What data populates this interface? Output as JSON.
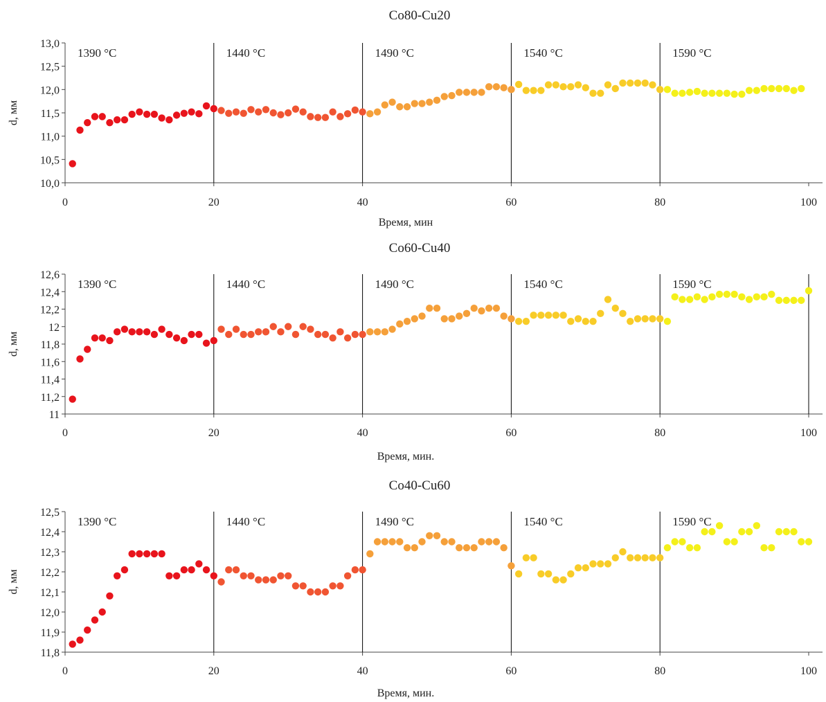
{
  "chart_data": [
    {
      "type": "scatter",
      "title": "Co80-Cu20",
      "xlabel": "Время, мин",
      "ylabel": "d, мм",
      "xlim": [
        0,
        100
      ],
      "ylim": [
        10.0,
        13.0
      ],
      "xticks": [
        "0",
        "20",
        "40",
        "60",
        "80",
        "100"
      ],
      "yticks": [
        "10,0",
        "10,5",
        "11,0",
        "11,5",
        "12,0",
        "12,5",
        "13,0"
      ],
      "separators": [
        20,
        40,
        60,
        80
      ],
      "stages": [
        {
          "label": "1390 °C",
          "x_from": 0,
          "x_to": 20,
          "color": "#e8141c"
        },
        {
          "label": "1440 °C",
          "x_from": 20,
          "x_to": 40,
          "color": "#f05532"
        },
        {
          "label": "1490 °C",
          "x_from": 40,
          "x_to": 60,
          "color": "#f5a03a"
        },
        {
          "label": "1540 °C",
          "x_from": 60,
          "x_to": 80,
          "color": "#f8cc28"
        },
        {
          "label": "1590 °C",
          "x_from": 80,
          "x_to": 100,
          "color": "#f4f01a"
        }
      ],
      "x": [
        1,
        2,
        3,
        4,
        5,
        6,
        7,
        8,
        9,
        10,
        11,
        12,
        13,
        14,
        15,
        16,
        17,
        18,
        19,
        20,
        21,
        22,
        23,
        24,
        25,
        26,
        27,
        28,
        29,
        30,
        31,
        32,
        33,
        34,
        35,
        36,
        37,
        38,
        39,
        40,
        41,
        42,
        43,
        44,
        45,
        46,
        47,
        48,
        49,
        50,
        51,
        52,
        53,
        54,
        55,
        56,
        57,
        58,
        59,
        60,
        61,
        62,
        63,
        64,
        65,
        66,
        67,
        68,
        69,
        70,
        71,
        72,
        73,
        74,
        75,
        76,
        77,
        78,
        79,
        80,
        81,
        82,
        83,
        84,
        85,
        86,
        87,
        88,
        89,
        90,
        91,
        92,
        93,
        94,
        95,
        96,
        97,
        98,
        99
      ],
      "y": [
        10.41,
        11.13,
        11.29,
        11.42,
        11.42,
        11.29,
        11.35,
        11.35,
        11.47,
        11.52,
        11.47,
        11.47,
        11.39,
        11.35,
        11.45,
        11.49,
        11.52,
        11.48,
        11.65,
        11.59,
        11.55,
        11.49,
        11.52,
        11.49,
        11.57,
        11.52,
        11.57,
        11.5,
        11.46,
        11.5,
        11.58,
        11.52,
        11.42,
        11.4,
        11.4,
        11.52,
        11.42,
        11.48,
        11.56,
        11.52,
        11.48,
        11.52,
        11.67,
        11.73,
        11.63,
        11.63,
        11.7,
        11.7,
        11.73,
        11.77,
        11.85,
        11.87,
        11.94,
        11.94,
        11.94,
        11.94,
        12.06,
        12.06,
        12.04,
        12.0,
        12.11,
        11.98,
        11.98,
        11.98,
        12.1,
        12.1,
        12.06,
        12.06,
        12.1,
        12.04,
        11.92,
        11.92,
        12.1,
        12.02,
        12.14,
        12.14,
        12.14,
        12.14,
        12.1,
        12.0,
        12.0,
        11.92,
        11.92,
        11.94,
        11.96,
        11.92,
        11.92,
        11.92,
        11.92,
        11.9,
        11.9,
        11.98,
        11.98,
        12.02,
        12.02,
        12.02,
        12.02,
        11.98,
        12.02
      ]
    },
    {
      "type": "scatter",
      "title": "Co60-Cu40",
      "xlabel": "Время, мин.",
      "ylabel": "d, мм",
      "xlim": [
        0,
        100
      ],
      "ylim": [
        11.0,
        12.6
      ],
      "xticks": [
        "0",
        "20",
        "40",
        "60",
        "80",
        "100"
      ],
      "yticks": [
        "11",
        "11,2",
        "11,4",
        "11,6",
        "11,8",
        "12",
        "12,2",
        "12,4",
        "12,6"
      ],
      "separators": [
        20,
        40,
        60,
        80,
        100
      ],
      "stages": [
        {
          "label": "1390 °C",
          "x_from": 0,
          "x_to": 20,
          "color": "#e8141c"
        },
        {
          "label": "1440 °C",
          "x_from": 20,
          "x_to": 40,
          "color": "#f05532"
        },
        {
          "label": "1490 °C",
          "x_from": 40,
          "x_to": 60,
          "color": "#f5a03a"
        },
        {
          "label": "1540 °C",
          "x_from": 60,
          "x_to": 80,
          "color": "#f8cc28"
        },
        {
          "label": "1590 °C",
          "x_from": 80,
          "x_to": 100,
          "color": "#f4f01a"
        }
      ],
      "x": [
        1,
        2,
        3,
        4,
        5,
        6,
        7,
        8,
        9,
        10,
        11,
        12,
        13,
        14,
        15,
        16,
        17,
        18,
        19,
        20,
        21,
        22,
        23,
        24,
        25,
        26,
        27,
        28,
        29,
        30,
        31,
        32,
        33,
        34,
        35,
        36,
        37,
        38,
        39,
        40,
        41,
        42,
        43,
        44,
        45,
        46,
        47,
        48,
        49,
        50,
        51,
        52,
        53,
        54,
        55,
        56,
        57,
        58,
        59,
        60,
        61,
        62,
        63,
        64,
        65,
        66,
        67,
        68,
        69,
        70,
        71,
        72,
        73,
        74,
        75,
        76,
        77,
        78,
        79,
        80,
        81,
        82,
        83,
        84,
        85,
        86,
        87,
        88,
        89,
        90,
        91,
        92,
        93,
        94,
        95,
        96,
        97,
        98,
        99,
        100
      ],
      "y": [
        11.17,
        11.63,
        11.74,
        11.87,
        11.87,
        11.84,
        11.94,
        11.97,
        11.94,
        11.94,
        11.94,
        11.91,
        11.97,
        11.91,
        11.87,
        11.84,
        11.91,
        11.91,
        11.81,
        11.84,
        11.97,
        11.91,
        11.97,
        11.91,
        11.91,
        11.94,
        11.94,
        12.0,
        11.94,
        12.0,
        11.91,
        12.0,
        11.97,
        11.91,
        11.91,
        11.87,
        11.94,
        11.87,
        11.91,
        11.91,
        11.94,
        11.94,
        11.94,
        11.97,
        12.03,
        12.06,
        12.09,
        12.12,
        12.21,
        12.21,
        12.09,
        12.09,
        12.12,
        12.15,
        12.21,
        12.18,
        12.21,
        12.21,
        12.12,
        12.09,
        12.06,
        12.06,
        12.13,
        12.13,
        12.13,
        12.13,
        12.13,
        12.06,
        12.09,
        12.06,
        12.06,
        12.15,
        12.31,
        12.21,
        12.15,
        12.06,
        12.09,
        12.09,
        12.09,
        12.09,
        12.06,
        12.34,
        12.31,
        12.31,
        12.34,
        12.31,
        12.34,
        12.37,
        12.37,
        12.37,
        12.34,
        12.31,
        12.34,
        12.34,
        12.37,
        12.3,
        12.3,
        12.3,
        12.3,
        12.41
      ]
    },
    {
      "type": "scatter",
      "title": "Co40-Cu60",
      "xlabel": "Время, мин.",
      "ylabel": "d, мм",
      "xlim": [
        0,
        100
      ],
      "ylim": [
        11.8,
        12.5
      ],
      "xticks": [
        "0",
        "20",
        "40",
        "60",
        "80",
        "100"
      ],
      "yticks": [
        "11,8",
        "11,9",
        "12,0",
        "12,1",
        "12,2",
        "12,3",
        "12,4",
        "12,5"
      ],
      "separators": [
        20,
        40,
        60,
        80
      ],
      "stages": [
        {
          "label": "1390 °C",
          "x_from": 0,
          "x_to": 20,
          "color": "#e8141c"
        },
        {
          "label": "1440 °C",
          "x_from": 20,
          "x_to": 40,
          "color": "#f05532"
        },
        {
          "label": "1490 °C",
          "x_from": 40,
          "x_to": 60,
          "color": "#f5a03a"
        },
        {
          "label": "1540 °C",
          "x_from": 60,
          "x_to": 80,
          "color": "#f8cc28"
        },
        {
          "label": "1590 °C",
          "x_from": 80,
          "x_to": 100,
          "color": "#f4f01a"
        }
      ],
      "x": [
        1,
        2,
        3,
        4,
        5,
        6,
        7,
        8,
        9,
        10,
        11,
        12,
        13,
        14,
        15,
        16,
        17,
        18,
        19,
        20,
        21,
        22,
        23,
        24,
        25,
        26,
        27,
        28,
        29,
        30,
        31,
        32,
        33,
        34,
        35,
        36,
        37,
        38,
        39,
        40,
        41,
        42,
        43,
        44,
        45,
        46,
        47,
        48,
        49,
        50,
        51,
        52,
        53,
        54,
        55,
        56,
        57,
        58,
        59,
        60,
        61,
        62,
        63,
        64,
        65,
        66,
        67,
        68,
        69,
        70,
        71,
        72,
        73,
        74,
        75,
        76,
        77,
        78,
        79,
        80,
        81,
        82,
        83,
        84,
        85,
        86,
        87,
        88,
        89,
        90,
        91,
        92,
        93,
        94,
        95,
        96,
        97,
        98,
        99,
        100
      ],
      "y": [
        11.84,
        11.86,
        11.91,
        11.96,
        12.0,
        12.08,
        12.18,
        12.21,
        12.29,
        12.29,
        12.29,
        12.29,
        12.29,
        12.18,
        12.18,
        12.21,
        12.21,
        12.24,
        12.21,
        12.18,
        12.15,
        12.21,
        12.21,
        12.18,
        12.18,
        12.16,
        12.16,
        12.16,
        12.18,
        12.18,
        12.13,
        12.13,
        12.1,
        12.1,
        12.1,
        12.13,
        12.13,
        12.18,
        12.21,
        12.21,
        12.29,
        12.35,
        12.35,
        12.35,
        12.35,
        12.32,
        12.32,
        12.35,
        12.38,
        12.38,
        12.35,
        12.35,
        12.32,
        12.32,
        12.32,
        12.35,
        12.35,
        12.35,
        12.32,
        12.23,
        12.19,
        12.27,
        12.27,
        12.19,
        12.19,
        12.16,
        12.16,
        12.19,
        12.22,
        12.22,
        12.24,
        12.24,
        12.24,
        12.27,
        12.3,
        12.27,
        12.27,
        12.27,
        12.27,
        12.27,
        12.32,
        12.35,
        12.35,
        12.32,
        12.32,
        12.4,
        12.4,
        12.43,
        12.35,
        12.35,
        12.4,
        12.4,
        12.43,
        12.32,
        12.32,
        12.4,
        12.4,
        12.4,
        12.35,
        12.35
      ]
    }
  ]
}
